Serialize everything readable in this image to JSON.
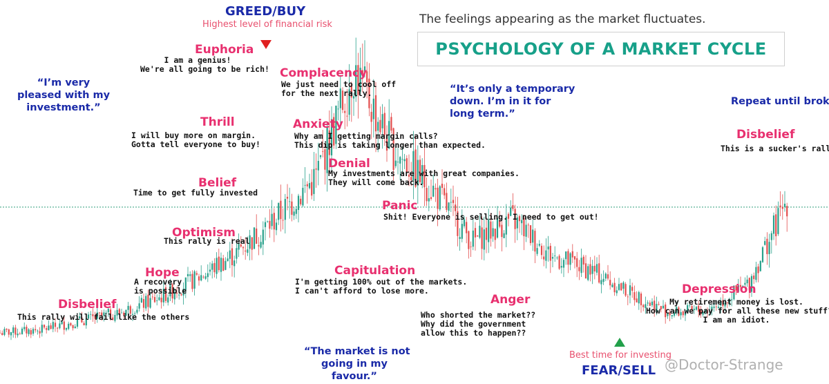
{
  "colors": {
    "phase": "#e8306f",
    "quote": "#1a2aa8",
    "title": "#17a089",
    "bull": "#27a08a",
    "bear": "#e34e4e",
    "risk": "#e8506e",
    "arrow_down": "#e02020",
    "arrow_up": "#22a04a",
    "hline": "#2f9e7a"
  },
  "header": {
    "subtitle": "The feelings appearing as the market fluctuates.",
    "title": "PSYCHOLOGY OF A MARKET CYCLE"
  },
  "greed": {
    "title": "GREED/BUY",
    "subtitle": "Highest level of financial risk",
    "icon": "triangle-down-icon"
  },
  "fear": {
    "title": "FEAR/SELL",
    "subtitle": "Best time for investing",
    "icon": "triangle-up-icon"
  },
  "phases": [
    {
      "name": "Disbelief",
      "desc": [
        "This rally will fail like the others"
      ]
    },
    {
      "name": "Hope",
      "desc": [
        "A recovery",
        "is possible"
      ]
    },
    {
      "name": "Optimism",
      "desc": [
        "This rally is real"
      ]
    },
    {
      "name": "Belief",
      "desc": [
        "Time to get fully invested"
      ]
    },
    {
      "name": "Thrill",
      "desc": [
        "I will buy more on margin.",
        "Gotta tell everyone to buy!"
      ]
    },
    {
      "name": "Euphoria",
      "desc": [
        "I am a genius!",
        "We're all going to be rich!"
      ]
    },
    {
      "name": "Complacency",
      "desc": [
        "We just need to cool off",
        "for the next rally."
      ]
    },
    {
      "name": "Anxiety",
      "desc": [
        "Why am I getting margin calls?",
        "This dip is taking longer than expected."
      ]
    },
    {
      "name": "Denial",
      "desc": [
        "My investments are with great companies.",
        "They will come back."
      ]
    },
    {
      "name": "Panic",
      "desc": [
        "Shit! Everyone is selling. I need to get out!"
      ]
    },
    {
      "name": "Capitulation",
      "desc": [
        "I'm getting 100% out of the markets.",
        "I can't afford to lose more."
      ]
    },
    {
      "name": "Anger",
      "desc": [
        "Who shorted the market??",
        "Why did the government",
        "allow this to happen??"
      ]
    },
    {
      "name": "Depression",
      "desc": [
        "My retirement money is lost.",
        "How can we pay for all these new stuff?",
        "I am an idiot."
      ]
    },
    {
      "name": "Disbelief",
      "desc": [
        "This is a sucker's rally."
      ]
    }
  ],
  "quotes": [
    [
      "“I’m very",
      "pleased with my",
      "investment.”"
    ],
    [
      "“It’s only a temporary",
      "down. I’m in it for",
      "long term.”"
    ],
    [
      "Repeat until broke."
    ],
    [
      "“The market is not",
      "going in my",
      "favour.”"
    ]
  ],
  "watermark": "@Doctor-Strange",
  "chart_data": {
    "type": "candlestick",
    "x": [
      0,
      5,
      10,
      15,
      20,
      25,
      30,
      35,
      40,
      45,
      50,
      55,
      60,
      65,
      70,
      75,
      80,
      85,
      90,
      95,
      100
    ],
    "values": [
      8,
      9,
      12,
      15,
      20,
      27,
      36,
      48,
      62,
      100,
      72,
      58,
      40,
      48,
      35,
      30,
      22,
      15,
      16,
      25,
      55
    ],
    "ylim": [
      0,
      110
    ],
    "grid": false,
    "reference_line_value": 52
  }
}
